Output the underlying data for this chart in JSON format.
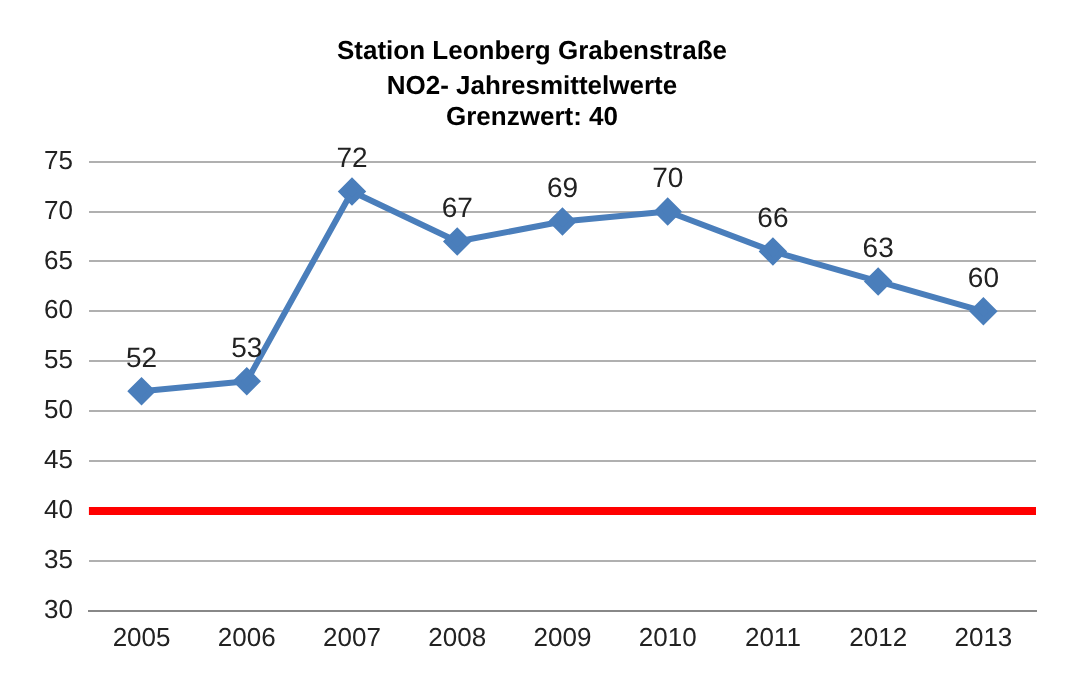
{
  "chart_data": {
    "type": "line",
    "title": "Station Leonberg Grabenstraße",
    "subtitle": "NO2- Jahresmittelwerte\nGrenzwert: 40",
    "categories": [
      "2005",
      "2006",
      "2007",
      "2008",
      "2009",
      "2010",
      "2011",
      "2012",
      "2013"
    ],
    "series": [
      {
        "color": "#4a7ebb",
        "values": [
          52,
          53,
          72,
          67,
          69,
          70,
          66,
          63,
          60
        ]
      }
    ],
    "ylim": [
      30,
      75
    ],
    "yticks": [
      30,
      35,
      40,
      45,
      50,
      55,
      60,
      65,
      70,
      75
    ],
    "grid": "y",
    "legend": false,
    "marker": "diamond",
    "line_style": "solid",
    "data_labels": true,
    "ref_lines": [
      {
        "axis": "y",
        "value": 40,
        "color": "#ff0000",
        "line_style": "solid"
      }
    ]
  }
}
